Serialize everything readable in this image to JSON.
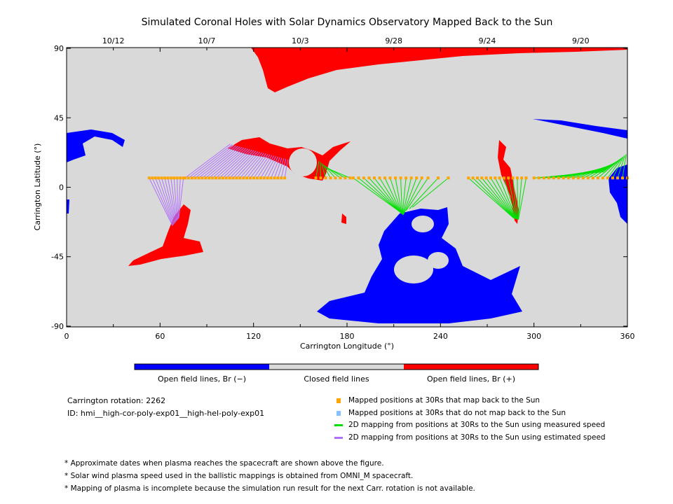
{
  "chart_data": {
    "type": "scatter",
    "title": "Simulated Coronal Holes with Solar Dynamics Observatory Mapped Back to the Sun",
    "xlabel": "Carrington Longitude (°)",
    "ylabel": "Carrington Latitude (°)",
    "xlim": [
      0,
      360
    ],
    "ylim": [
      -90,
      90
    ],
    "xticks": [
      "0",
      "60",
      "120",
      "180",
      "240",
      "300",
      "360"
    ],
    "yticks": [
      "90",
      "45",
      "0",
      "-45",
      "-90"
    ],
    "top_date_labels": [
      {
        "lon": 30,
        "label": "10/12"
      },
      {
        "lon": 90,
        "label": "10/7"
      },
      {
        "lon": 150,
        "label": "10/3"
      },
      {
        "lon": 210,
        "label": "9/28"
      },
      {
        "lon": 270,
        "label": "9/24"
      },
      {
        "lon": 330,
        "label": "9/20"
      }
    ],
    "mapping_clusters": [
      {
        "type": "estimated",
        "from": [
          53,
          75
        ],
        "n": 12,
        "to_lon": [
          68,
          72
        ],
        "to_lat": [
          -25,
          -20
        ]
      },
      {
        "type": "estimated",
        "from": [
          76,
          140
        ],
        "n": 30,
        "to_lon": [
          105,
          142
        ],
        "to_lat": [
          28,
          18
        ]
      },
      {
        "type": "measured",
        "from": [
          160,
          182
        ],
        "n": 8,
        "to_lon": [
          162,
          168
        ],
        "to_lat": [
          17,
          12
        ]
      },
      {
        "type": "measured",
        "from": [
          184,
          228
        ],
        "n": 14,
        "to_lon": [
          214,
          216
        ],
        "to_lat": [
          -16,
          -18
        ]
      },
      {
        "type": "measured",
        "from": [
          232,
          245
        ],
        "n": 3,
        "to_lon": [
          218,
          222
        ],
        "to_lat": [
          -15,
          -13
        ]
      },
      {
        "type": "measured",
        "from": [
          258,
          295
        ],
        "n": 14,
        "to_lon": [
          287,
          290
        ],
        "to_lat": [
          -20,
          -21
        ]
      },
      {
        "type": "measured",
        "from": [
          300,
          360
        ],
        "n": 20,
        "to_lon": [
          345,
          360
        ],
        "to_lat": [
          10,
          22
        ]
      }
    ],
    "mapping_lat": 6,
    "legend": {
      "colorbar": [
        "Open field lines, Br (−)",
        "Closed field lines",
        "Open field lines, Br (+)"
      ],
      "items": [
        "Mapped positions at 30Rs that map back to the Sun",
        "Mapped positions at 30Rs that do not map back to the Sun",
        "2D mapping from positions at 30Rs to the Sun using measured speed",
        "2D mapping from positions at 30Rs to the Sun using estimated speed"
      ]
    },
    "colors": {
      "negative": "#0000ff",
      "closed": "#d9d9d9",
      "positive": "#ff0000",
      "mapped": "#ffa500",
      "unmapped": "#87bfff",
      "measured": "#00e000",
      "estimated": "#b070ff"
    }
  },
  "info": {
    "rotation": "Carrington rotation: 2262",
    "id": "ID: hmi__high-cor-poly-exp01__high-hel-poly-exp01"
  },
  "notes": [
    "* Approximate dates when plasma reaches the spacecraft are shown above the figure.",
    "* Solar wind plasma speed used in the ballistic mappings is obtained from OMNI_M spacecraft.",
    "* Mapping of plasma is incomplete because the simulation run result for the next Carr. rotation is not available."
  ]
}
